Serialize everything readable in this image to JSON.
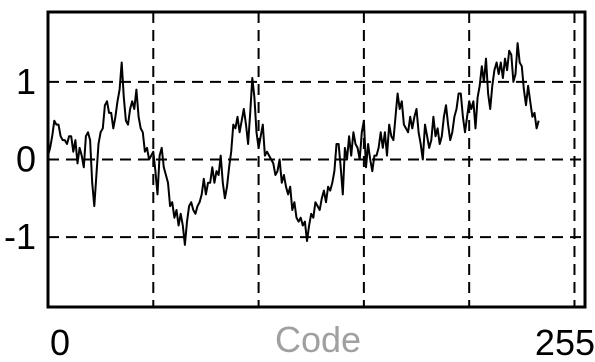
{
  "chart_data": {
    "type": "line",
    "title": "",
    "xlabel": "Code",
    "ylabel": "",
    "xlim": [
      0,
      255
    ],
    "ylim": [
      -1.9,
      1.9
    ],
    "x_ticks": [
      {
        "value": 0,
        "label": "0"
      },
      {
        "value": 255,
        "label": "255"
      }
    ],
    "y_ticks": [
      {
        "value": 1,
        "label": "1"
      },
      {
        "value": 0,
        "label": "0"
      },
      {
        "value": -1,
        "label": "-1"
      }
    ],
    "x_grid": [
      50,
      100,
      150,
      200,
      250
    ],
    "y_grid": [
      -1,
      0,
      1
    ],
    "grid": true,
    "grid_style": "dashed",
    "xlabel_color": "#a0a0a0",
    "line_color": "#000000",
    "series": [
      {
        "values": [
          [
            0,
            0.05
          ],
          [
            1,
            0.15
          ],
          [
            2,
            0.3
          ],
          [
            3,
            0.5
          ],
          [
            4,
            0.45
          ],
          [
            5,
            0.45
          ],
          [
            6,
            0.3
          ],
          [
            7,
            0.25
          ],
          [
            8,
            0.25
          ],
          [
            9,
            0.2
          ],
          [
            10,
            0.3
          ],
          [
            11,
            0.3
          ],
          [
            12,
            0.1
          ],
          [
            13,
            0.25
          ],
          [
            14,
            -0.05
          ],
          [
            15,
            0.15
          ],
          [
            16,
            0.05
          ],
          [
            17,
            -0.1
          ],
          [
            18,
            0.3
          ],
          [
            19,
            0.35
          ],
          [
            20,
            0.25
          ],
          [
            21,
            -0.3
          ],
          [
            22,
            -0.6
          ],
          [
            23,
            -0.2
          ],
          [
            24,
            0.2
          ],
          [
            25,
            0.35
          ],
          [
            26,
            0.4
          ],
          [
            27,
            0.7
          ],
          [
            28,
            0.75
          ],
          [
            29,
            0.6
          ],
          [
            30,
            0.6
          ],
          [
            31,
            0.4
          ],
          [
            32,
            0.55
          ],
          [
            33,
            0.75
          ],
          [
            34,
            0.9
          ],
          [
            35,
            1.25
          ],
          [
            36,
            0.8
          ],
          [
            37,
            0.5
          ],
          [
            38,
            0.45
          ],
          [
            39,
            0.65
          ],
          [
            40,
            0.75
          ],
          [
            41,
            0.65
          ],
          [
            42,
            0.9
          ],
          [
            43,
            0.55
          ],
          [
            44,
            0.4
          ],
          [
            45,
            0.35
          ],
          [
            46,
            0.1
          ],
          [
            47,
            0.15
          ],
          [
            48,
            0.0
          ],
          [
            49,
            0.05
          ],
          [
            50,
            0.1
          ],
          [
            51,
            -0.15
          ],
          [
            52,
            -0.45
          ],
          [
            53,
            0.05
          ],
          [
            54,
            0.15
          ],
          [
            55,
            -0.1
          ],
          [
            56,
            -0.2
          ],
          [
            57,
            -0.3
          ],
          [
            58,
            -0.6
          ],
          [
            59,
            -0.55
          ],
          [
            60,
            -0.75
          ],
          [
            61,
            -0.65
          ],
          [
            62,
            -0.85
          ],
          [
            63,
            -0.7
          ],
          [
            64,
            -0.85
          ],
          [
            65,
            -1.1
          ],
          [
            66,
            -0.8
          ],
          [
            67,
            -0.6
          ],
          [
            68,
            -0.55
          ],
          [
            69,
            -0.65
          ],
          [
            70,
            -0.7
          ],
          [
            71,
            -0.6
          ],
          [
            72,
            -0.55
          ],
          [
            73,
            -0.45
          ],
          [
            74,
            -0.25
          ],
          [
            75,
            -0.45
          ],
          [
            76,
            -0.3
          ],
          [
            77,
            -0.3
          ],
          [
            78,
            -0.1
          ],
          [
            79,
            -0.3
          ],
          [
            80,
            -0.15
          ],
          [
            81,
            -0.2
          ],
          [
            82,
            0.05
          ],
          [
            83,
            -0.3
          ],
          [
            84,
            -0.5
          ],
          [
            85,
            -0.35
          ],
          [
            86,
            -0.1
          ],
          [
            87,
            0.1
          ],
          [
            88,
            0.45
          ],
          [
            89,
            0.4
          ],
          [
            90,
            0.55
          ],
          [
            91,
            0.35
          ],
          [
            92,
            0.5
          ],
          [
            93,
            0.65
          ],
          [
            94,
            0.45
          ],
          [
            95,
            0.2
          ],
          [
            96,
            0.6
          ],
          [
            97,
            1.05
          ],
          [
            98,
            0.8
          ],
          [
            99,
            0.35
          ],
          [
            100,
            0.15
          ],
          [
            101,
            0.3
          ],
          [
            102,
            0.45
          ],
          [
            103,
            0.05
          ],
          [
            104,
            0.1
          ],
          [
            105,
            0.05
          ],
          [
            106,
            0.0
          ],
          [
            107,
            -0.05
          ],
          [
            108,
            -0.2
          ],
          [
            109,
            -0.15
          ],
          [
            110,
            0.0
          ],
          [
            111,
            -0.3
          ],
          [
            112,
            -0.2
          ],
          [
            113,
            -0.35
          ],
          [
            114,
            -0.45
          ],
          [
            115,
            -0.35
          ],
          [
            116,
            -0.65
          ],
          [
            117,
            -0.55
          ],
          [
            118,
            -0.75
          ],
          [
            119,
            -0.8
          ],
          [
            120,
            -0.75
          ],
          [
            121,
            -0.85
          ],
          [
            122,
            -0.8
          ],
          [
            123,
            -1.05
          ],
          [
            124,
            -0.85
          ],
          [
            125,
            -0.7
          ],
          [
            126,
            -0.75
          ],
          [
            127,
            -0.55
          ],
          [
            128,
            -0.6
          ],
          [
            129,
            -0.65
          ],
          [
            130,
            -0.5
          ],
          [
            131,
            -0.4
          ],
          [
            132,
            -0.55
          ],
          [
            133,
            -0.35
          ],
          [
            134,
            -0.4
          ],
          [
            135,
            -0.3
          ],
          [
            136,
            -0.15
          ],
          [
            137,
            0.2
          ],
          [
            138,
            0.2
          ],
          [
            139,
            -0.1
          ],
          [
            140,
            -0.45
          ],
          [
            141,
            0.15
          ],
          [
            142,
            0.0
          ],
          [
            143,
            0.3
          ],
          [
            144,
            0.05
          ],
          [
            145,
            0.35
          ],
          [
            146,
            0.2
          ],
          [
            147,
            0.15
          ],
          [
            148,
            0.0
          ],
          [
            149,
            0.35
          ],
          [
            150,
            0.5
          ],
          [
            151,
            -0.1
          ],
          [
            152,
            0.2
          ],
          [
            153,
            0.0
          ],
          [
            154,
            -0.15
          ],
          [
            155,
            0.05
          ],
          [
            156,
            0.05
          ],
          [
            157,
            0.15
          ],
          [
            158,
            0.35
          ],
          [
            159,
            0.15
          ],
          [
            160,
            0.35
          ],
          [
            161,
            0.05
          ],
          [
            162,
            0.45
          ],
          [
            163,
            0.3
          ],
          [
            164,
            0.25
          ],
          [
            165,
            0.55
          ],
          [
            166,
            0.85
          ],
          [
            167,
            0.65
          ],
          [
            168,
            0.75
          ],
          [
            169,
            0.45
          ],
          [
            170,
            0.4
          ],
          [
            171,
            0.35
          ],
          [
            172,
            0.55
          ],
          [
            173,
            0.4
          ],
          [
            174,
            0.55
          ],
          [
            175,
            0.65
          ],
          [
            176,
            0.35
          ],
          [
            177,
            0.2
          ],
          [
            178,
            0.0
          ],
          [
            179,
            0.45
          ],
          [
            180,
            0.3
          ],
          [
            181,
            0.15
          ],
          [
            182,
            0.25
          ],
          [
            183,
            0.55
          ],
          [
            184,
            0.3
          ],
          [
            185,
            0.4
          ],
          [
            186,
            0.2
          ],
          [
            187,
            0.3
          ],
          [
            188,
            0.55
          ],
          [
            189,
            0.7
          ],
          [
            190,
            0.45
          ],
          [
            191,
            0.25
          ],
          [
            192,
            0.35
          ],
          [
            193,
            0.55
          ],
          [
            194,
            0.65
          ],
          [
            195,
            0.85
          ],
          [
            196,
            0.85
          ],
          [
            197,
            0.55
          ],
          [
            198,
            0.35
          ],
          [
            199,
            0.55
          ],
          [
            200,
            0.75
          ],
          [
            201,
            0.65
          ],
          [
            202,
            0.75
          ],
          [
            203,
            0.4
          ],
          [
            204,
            0.8
          ],
          [
            205,
            0.95
          ],
          [
            206,
            1.2
          ],
          [
            207,
            1.0
          ],
          [
            208,
            1.3
          ],
          [
            209,
            0.85
          ],
          [
            210,
            0.65
          ],
          [
            211,
            0.95
          ],
          [
            212,
            1.15
          ],
          [
            213,
            1.25
          ],
          [
            214,
            1.1
          ],
          [
            215,
            1.25
          ],
          [
            216,
            1.05
          ],
          [
            217,
            1.3
          ],
          [
            218,
            1.15
          ],
          [
            219,
            1.4
          ],
          [
            220,
            1.35
          ],
          [
            221,
            1.0
          ],
          [
            222,
            1.1
          ],
          [
            223,
            1.5
          ],
          [
            224,
            1.25
          ],
          [
            225,
            1.2
          ],
          [
            226,
            0.9
          ],
          [
            227,
            0.7
          ],
          [
            228,
            0.95
          ],
          [
            229,
            0.75
          ],
          [
            230,
            0.55
          ],
          [
            231,
            0.6
          ],
          [
            232,
            0.4
          ],
          [
            233,
            0.5
          ]
        ]
      }
    ]
  }
}
